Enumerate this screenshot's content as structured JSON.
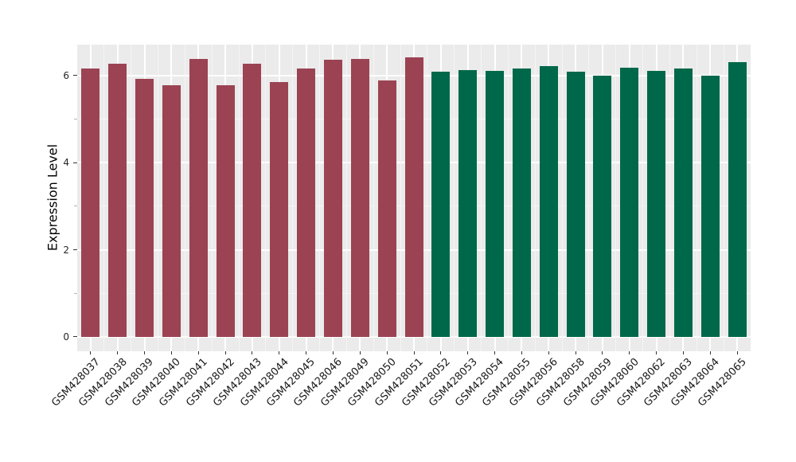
{
  "chart_data": {
    "type": "bar",
    "title": "",
    "xlabel": "",
    "ylabel": "Expression Level",
    "categories": [
      "GSM428037",
      "GSM428038",
      "GSM428039",
      "GSM428040",
      "GSM428041",
      "GSM428042",
      "GSM428043",
      "GSM428044",
      "GSM428045",
      "GSM428046",
      "GSM428049",
      "GSM428050",
      "GSM428051",
      "GSM428052",
      "GSM428053",
      "GSM428054",
      "GSM428055",
      "GSM428056",
      "GSM428058",
      "GSM428059",
      "GSM428060",
      "GSM428062",
      "GSM428063",
      "GSM428064",
      "GSM428065"
    ],
    "values": [
      6.17,
      6.28,
      5.92,
      5.78,
      6.38,
      5.78,
      6.27,
      5.85,
      6.16,
      6.36,
      6.38,
      5.89,
      6.42,
      6.08,
      6.13,
      6.1,
      6.16,
      6.22,
      6.09,
      6.0,
      6.18,
      6.1,
      6.17,
      6.0,
      6.31
    ],
    "groups": [
      "group1",
      "group1",
      "group1",
      "group1",
      "group1",
      "group1",
      "group1",
      "group1",
      "group1",
      "group1",
      "group1",
      "group1",
      "group1",
      "group2",
      "group2",
      "group2",
      "group2",
      "group2",
      "group2",
      "group2",
      "group2",
      "group2",
      "group2",
      "group2",
      "group2"
    ],
    "group_colors": {
      "group1": "#9B4353",
      "group2": "#00684A"
    },
    "yticks": [
      0,
      2,
      4,
      6
    ],
    "minor_yticks": [
      1,
      3,
      5
    ],
    "ylim": [
      -0.33,
      6.71
    ],
    "grid": true,
    "legend": "none",
    "panel_bg": "#EBEBEB",
    "grid_major_color": "#FFFFFF",
    "grid_minor_color": "#F5F5F5",
    "tick_color": "#333333",
    "minor_tick_color": "#B3B3B3",
    "axis_text_color": "#262626"
  }
}
